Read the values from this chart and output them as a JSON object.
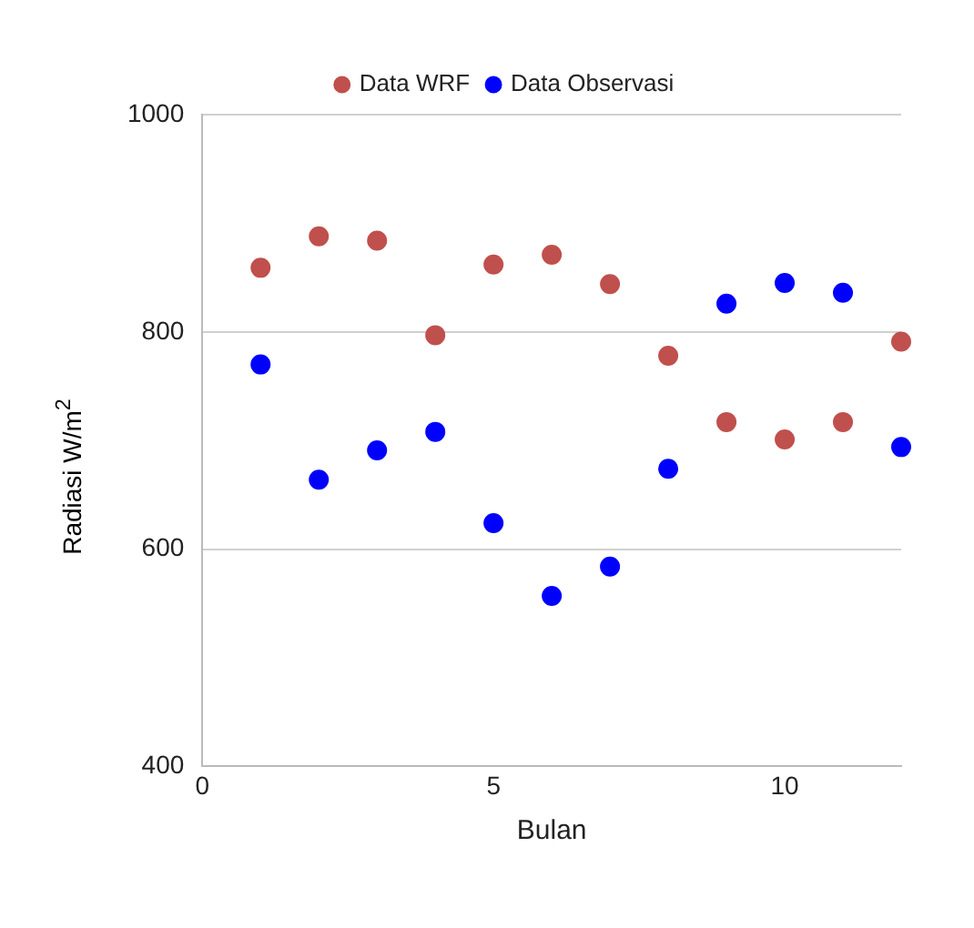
{
  "chart_data": {
    "type": "scatter",
    "xlabel": "Bulan",
    "ylabel": "Radiasi W/m$^{2}$",
    "x": [
      1,
      2,
      3,
      4,
      5,
      6,
      7,
      8,
      9,
      10,
      11,
      12
    ],
    "series": [
      {
        "name": "Data WRF",
        "color": "#c0504d",
        "values": [
          859,
          888,
          884,
          797,
          862,
          871,
          844,
          778,
          717,
          701,
          717,
          791
        ]
      },
      {
        "name": "Data Observasi",
        "color": "#0000ff",
        "values": [
          770,
          664,
          691,
          708,
          624,
          557,
          584,
          674,
          826,
          845,
          836,
          694
        ]
      }
    ],
    "xlim": [
      0,
      12
    ],
    "xticks": [
      0,
      5,
      10
    ],
    "ylim": [
      400,
      1000
    ],
    "yticks": [
      400,
      600,
      800,
      1000
    ],
    "grid": "y",
    "legend": "top",
    "marker": "circle"
  }
}
